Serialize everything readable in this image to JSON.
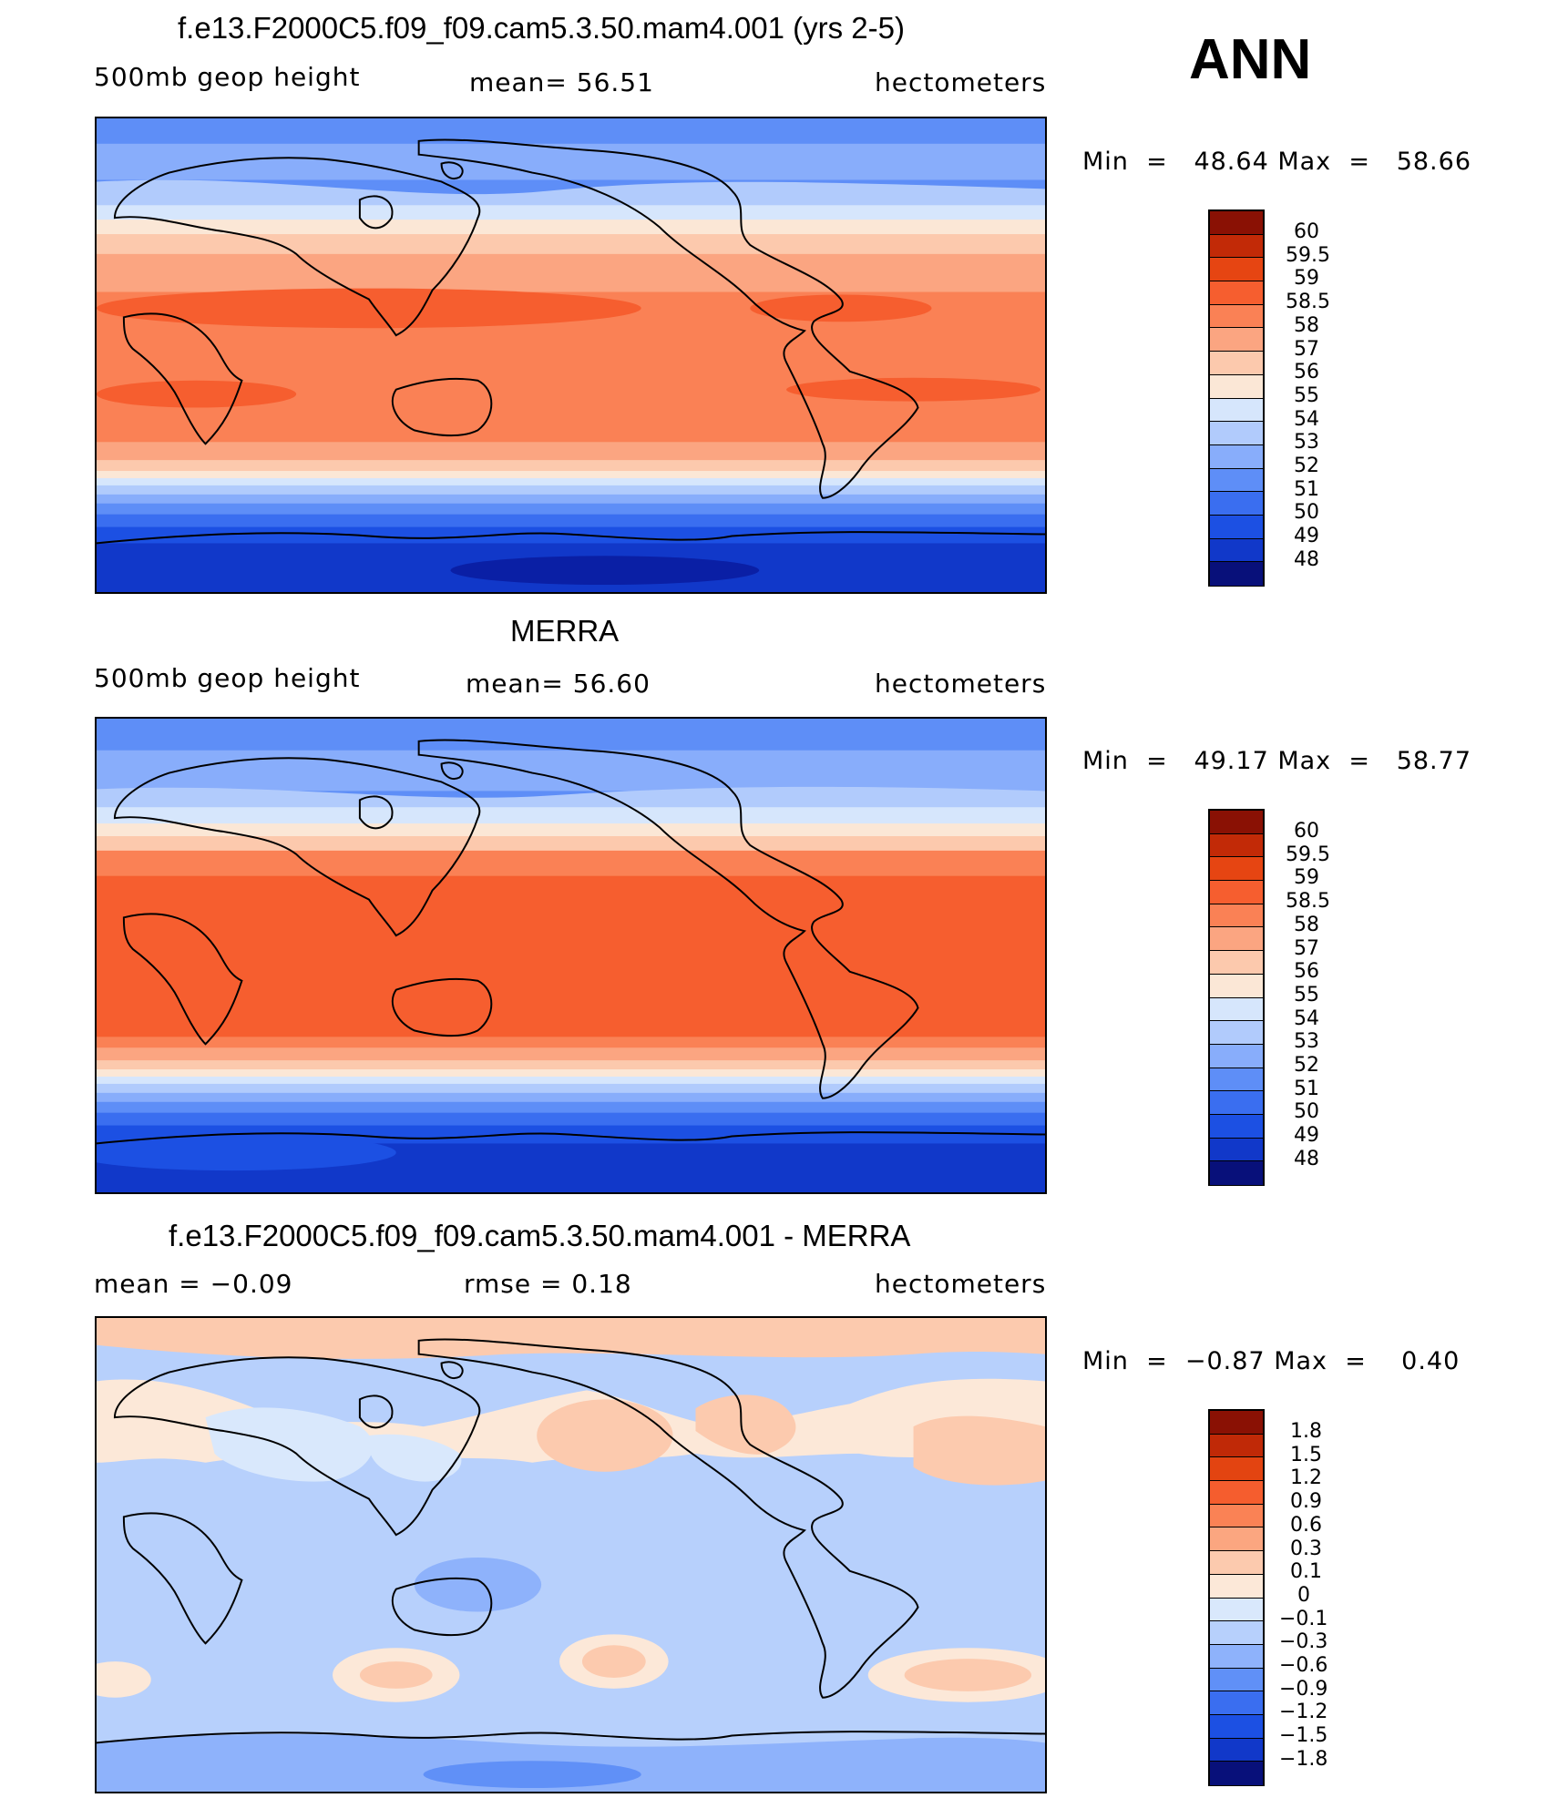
{
  "season": "ANN",
  "colors": {
    "abs": [
      "#08107a",
      "#0a1fa5",
      "#1138c9",
      "#1c50e3",
      "#3a6ef0",
      "#5e8ef7",
      "#88adfb",
      "#b1cbfc",
      "#d6e6fc",
      "#fbe7d6",
      "#fcc9ad",
      "#fba581",
      "#fa8155",
      "#f65e2f",
      "#e64512",
      "#c22a07",
      "#8a1104"
    ],
    "diff": [
      "#08107a",
      "#0a1fa5",
      "#1138c9",
      "#1c50e3",
      "#3a6ef0",
      "#6090f7",
      "#8eb2fb",
      "#b7d0fc",
      "#d9e8fc",
      "#fce8d8",
      "#fccaae",
      "#fba680",
      "#fa8255",
      "#f55d2e",
      "#e34411",
      "#c02907",
      "#8a1104"
    ]
  },
  "panels": [
    {
      "id": "model",
      "title": "f.e13.F2000C5.f09_f09.cam5.3.50.mam4.001 (yrs 2-5)",
      "left": "500mb  geop  height",
      "center": "mean=   56.51",
      "right": "hectometers",
      "min_label": "Min  =",
      "min_value": "48.64",
      "max_label": "Max  =",
      "max_value": "58.66",
      "colorbar_labels": [
        "60",
        "59.5",
        "59",
        "58.5",
        "58",
        "57",
        "56",
        "55",
        "54",
        "53",
        "52",
        "51",
        "50",
        "49",
        "48"
      ]
    },
    {
      "id": "obs",
      "title": "MERRA",
      "left": "500mb  geop  height",
      "center": "mean=   56.60",
      "right": "hectometers",
      "min_label": "Min  =",
      "min_value": "49.17",
      "max_label": "Max  =",
      "max_value": "58.77",
      "colorbar_labels": [
        "60",
        "59.5",
        "59",
        "58.5",
        "58",
        "57",
        "56",
        "55",
        "54",
        "53",
        "52",
        "51",
        "50",
        "49",
        "48"
      ]
    },
    {
      "id": "diff",
      "title": "f.e13.F2000C5.f09_f09.cam5.3.50.mam4.001 - MERRA",
      "left": "mean  =    −0.09",
      "center": "rmse  =     0.18",
      "right": "hectometers",
      "min_label": "Min  =",
      "min_value": "−0.87",
      "max_label": "Max  =",
      "max_value": "0.40",
      "colorbar_labels": [
        "1.8",
        "1.5",
        "1.2",
        "0.9",
        "0.6",
        "0.3",
        "0.1",
        "0",
        "−0.1",
        "−0.3",
        "−0.6",
        "−0.9",
        "−1.2",
        "−1.5",
        "−1.8"
      ]
    }
  ]
}
